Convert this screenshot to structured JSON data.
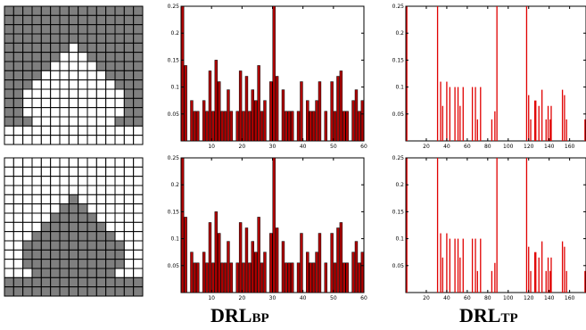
{
  "figure": {
    "captions": [
      {
        "prefix": "DRL",
        "suffix": "BP"
      },
      {
        "prefix": "DRL",
        "suffix": "TP"
      }
    ]
  },
  "grids": [
    {
      "name": "pattern-top",
      "rows": 15,
      "cols": 15,
      "colors": {
        "filled": "#7f7f7f",
        "empty": "#ffffff",
        "line": "#000000"
      },
      "cells": [
        "111111111111111",
        "111111111111111",
        "111111111111111",
        "111111111111111",
        "111111101111111",
        "111111000111111",
        "111110000011111",
        "111100000001111",
        "111000000000111",
        "110000000000011",
        "110000000000011",
        "110000000000011",
        "111000000000111",
        "000000000000000",
        "000000000000000"
      ]
    },
    {
      "name": "pattern-bottom",
      "rows": 15,
      "cols": 15,
      "colors": {
        "filled": "#7f7f7f",
        "empty": "#ffffff",
        "line": "#000000"
      },
      "cells": [
        "000000000000000",
        "000000000000000",
        "000000000000000",
        "000000000000000",
        "000000010000000",
        "000000111000000",
        "000001111100000",
        "000011111110000",
        "000111111111000",
        "001111111111100",
        "001111111111100",
        "001111111111100",
        "000111111111000",
        "111111111111111",
        "111111111111111"
      ]
    }
  ],
  "chart_data": [
    {
      "type": "bar",
      "caption": "DRLBP",
      "xlim": [
        0,
        60
      ],
      "ylim": [
        0,
        0.25
      ],
      "xticks": [
        "10",
        "20",
        "30",
        "40",
        "50",
        "60"
      ],
      "yticks": [
        "0.05",
        "0.1",
        "0.15",
        "0.2",
        "0.25"
      ],
      "bar_color": "#b00000",
      "x": [
        1,
        2,
        3,
        4,
        5,
        6,
        7,
        8,
        9,
        10,
        11,
        12,
        13,
        14,
        15,
        16,
        17,
        18,
        19,
        20,
        21,
        22,
        23,
        24,
        25,
        26,
        27,
        28,
        29,
        30,
        31,
        32,
        33,
        34,
        35,
        36,
        37,
        38,
        39,
        40,
        41,
        42,
        43,
        44,
        45,
        46,
        47,
        48,
        49,
        50,
        51,
        52,
        53,
        54,
        55,
        56,
        57,
        58,
        59,
        60
      ],
      "values": [
        0.25,
        0.14,
        0,
        0.075,
        0.055,
        0.055,
        0,
        0.075,
        0.055,
        0.13,
        0.055,
        0.15,
        0.11,
        0.055,
        0.055,
        0.095,
        0.055,
        0,
        0.055,
        0.13,
        0.055,
        0.12,
        0.055,
        0.095,
        0.075,
        0.14,
        0.055,
        0.075,
        0,
        0.11,
        0.25,
        0.12,
        0,
        0.095,
        0.055,
        0.055,
        0.055,
        0,
        0.055,
        0.11,
        0,
        0.075,
        0.055,
        0.055,
        0.075,
        0.11,
        0,
        0.055,
        0,
        0.11,
        0.055,
        0.12,
        0.13,
        0.055,
        0.055,
        0,
        0.075,
        0.095,
        0.055,
        0.075
      ]
    },
    {
      "type": "bar",
      "caption": "DRLTP",
      "xlim": [
        0,
        176
      ],
      "ylim": [
        0,
        0.25
      ],
      "xticks": [
        "20",
        "40",
        "60",
        "80",
        "100",
        "120",
        "140",
        "160"
      ],
      "yticks": [
        "0.05",
        "0.1",
        "0.15",
        "0.2",
        "0.25"
      ],
      "bar_color": "#e00000",
      "x": [
        1,
        31,
        34,
        36,
        40,
        43,
        48,
        51,
        53,
        56,
        65,
        68,
        70,
        73,
        84,
        87,
        89,
        118,
        120,
        122,
        126,
        127,
        130,
        133,
        137,
        139,
        141,
        142,
        153,
        155,
        157,
        175
      ],
      "values": [
        0.25,
        0.25,
        0.11,
        0.065,
        0.11,
        0.1,
        0.1,
        0.1,
        0.065,
        0.1,
        0.1,
        0.1,
        0.04,
        0.1,
        0.04,
        0.055,
        0.25,
        0.25,
        0.085,
        0.04,
        0.075,
        0.075,
        0.065,
        0.095,
        0.04,
        0.065,
        0.04,
        0.065,
        0.095,
        0.085,
        0.04,
        0.04
      ]
    },
    {
      "type": "bar",
      "caption": "DRLBP",
      "xlim": [
        0,
        60
      ],
      "ylim": [
        0,
        0.25
      ],
      "xticks": [
        "10",
        "20",
        "30",
        "40",
        "50",
        "60"
      ],
      "yticks": [
        "0.05",
        "0.1",
        "0.15",
        "0.2",
        "0.25"
      ],
      "bar_color": "#b00000",
      "x": [
        1,
        2,
        3,
        4,
        5,
        6,
        7,
        8,
        9,
        10,
        11,
        12,
        13,
        14,
        15,
        16,
        17,
        18,
        19,
        20,
        21,
        22,
        23,
        24,
        25,
        26,
        27,
        28,
        29,
        30,
        31,
        32,
        33,
        34,
        35,
        36,
        37,
        38,
        39,
        40,
        41,
        42,
        43,
        44,
        45,
        46,
        47,
        48,
        49,
        50,
        51,
        52,
        53,
        54,
        55,
        56,
        57,
        58,
        59,
        60
      ],
      "values": [
        0.25,
        0.14,
        0,
        0.075,
        0.055,
        0.055,
        0,
        0.075,
        0.055,
        0.13,
        0.055,
        0.15,
        0.11,
        0.055,
        0.055,
        0.095,
        0.055,
        0,
        0.055,
        0.13,
        0.055,
        0.12,
        0.055,
        0.095,
        0.075,
        0.14,
        0.055,
        0.075,
        0,
        0.11,
        0.25,
        0.12,
        0,
        0.095,
        0.055,
        0.055,
        0.055,
        0,
        0.055,
        0.11,
        0,
        0.075,
        0.055,
        0.055,
        0.075,
        0.11,
        0,
        0.055,
        0,
        0.11,
        0.055,
        0.12,
        0.13,
        0.055,
        0.055,
        0,
        0.075,
        0.095,
        0.055,
        0.075
      ]
    },
    {
      "type": "bar",
      "caption": "DRLTP",
      "xlim": [
        0,
        176
      ],
      "ylim": [
        0,
        0.25
      ],
      "xticks": [
        "20",
        "40",
        "60",
        "80",
        "100",
        "120",
        "140",
        "160"
      ],
      "yticks": [
        "0.05",
        "0.1",
        "0.15",
        "0.2",
        "0.25"
      ],
      "bar_color": "#e00000",
      "x": [
        1,
        31,
        34,
        36,
        40,
        43,
        48,
        51,
        53,
        56,
        65,
        68,
        70,
        73,
        84,
        87,
        89,
        118,
        120,
        122,
        126,
        127,
        130,
        133,
        137,
        139,
        141,
        142,
        153,
        155,
        157,
        175
      ],
      "values": [
        0.25,
        0.25,
        0.11,
        0.065,
        0.11,
        0.1,
        0.1,
        0.1,
        0.065,
        0.1,
        0.1,
        0.1,
        0.04,
        0.1,
        0.04,
        0.055,
        0.25,
        0.25,
        0.085,
        0.04,
        0.075,
        0.075,
        0.065,
        0.095,
        0.04,
        0.065,
        0.04,
        0.065,
        0.095,
        0.085,
        0.04,
        0.04
      ]
    }
  ]
}
